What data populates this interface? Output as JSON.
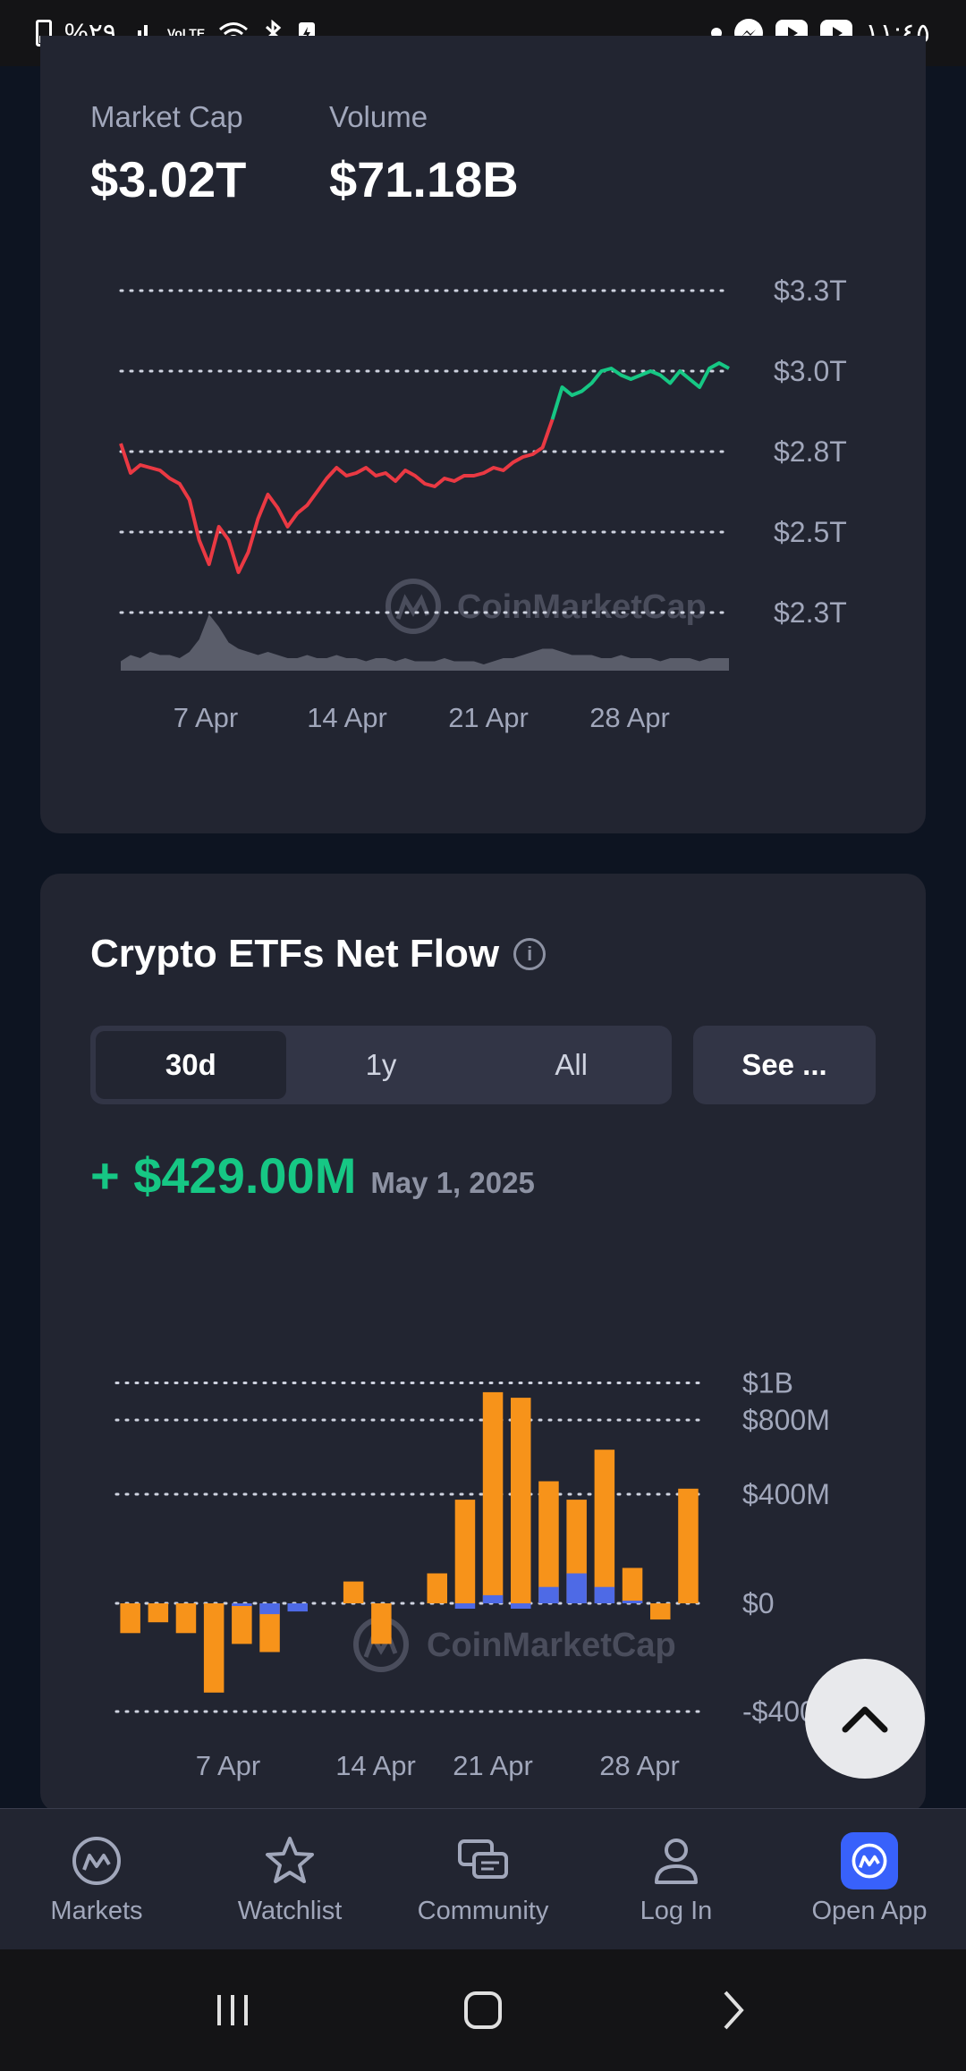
{
  "status_bar": {
    "battery_percent": "%٢٩",
    "network": "VoLTE",
    "time": "١١:٤٥"
  },
  "market": {
    "market_cap_label": "Market Cap",
    "market_cap_value": "$3.02T",
    "volume_label": "Volume",
    "volume_value": "$71.18B",
    "watermark": "CoinMarketCap"
  },
  "chart_data": [
    {
      "type": "line",
      "y_ticks": [
        "$3.3T",
        "$3.0T",
        "$2.8T",
        "$2.5T",
        "$2.3T"
      ],
      "x_ticks": [
        "7 Apr",
        "14 Apr",
        "21 Apr",
        "28 Apr"
      ],
      "ylim": [
        2.25,
        3.35
      ],
      "grid": true,
      "series": [
        {
          "values": [
            2.82,
            2.72,
            2.75,
            2.74,
            2.73,
            2.7,
            2.68,
            2.62,
            2.48,
            2.42,
            2.52,
            2.48,
            2.4,
            2.45,
            2.55,
            2.64,
            2.59,
            2.52,
            2.57,
            2.6,
            2.65,
            2.7,
            2.74,
            2.71,
            2.72,
            2.74,
            2.71,
            2.72,
            2.69,
            2.73,
            2.71,
            2.68,
            2.67,
            2.7,
            2.69,
            2.71,
            2.71,
            2.72,
            2.74,
            2.73,
            2.76,
            2.78,
            2.79,
            2.81,
            2.88,
            2.96,
            2.94,
            2.95,
            2.97,
            3.0,
            3.01,
            2.99,
            2.98,
            2.99,
            3.0,
            2.99,
            2.97,
            3.0,
            2.98,
            2.96,
            3.01,
            3.03,
            3.01
          ],
          "colors": {
            "down": "#ea3943",
            "up": "#16c784"
          }
        }
      ],
      "volume": [
        3,
        5,
        4,
        6,
        5,
        5,
        4,
        6,
        10,
        18,
        14,
        9,
        7,
        6,
        5,
        6,
        5,
        4,
        4,
        5,
        4,
        4,
        5,
        4,
        4,
        3,
        4,
        4,
        3,
        4,
        3,
        3,
        3,
        4,
        3,
        3,
        3,
        2,
        3,
        4,
        4,
        5,
        6,
        7,
        7,
        6,
        5,
        5,
        5,
        4,
        4,
        5,
        4,
        4,
        4,
        3,
        4,
        4,
        4,
        3,
        4,
        4,
        4
      ]
    },
    {
      "type": "bar",
      "y_ticks": [
        "$1B",
        "$800M",
        "$400M",
        "$0",
        "-$400M"
      ],
      "x_ticks": [
        "7 Apr",
        "14 Apr",
        "21 Apr",
        "28 Apr"
      ],
      "ylim": [
        -400,
        1000
      ],
      "grid": true,
      "series": [
        {
          "name": "BTC",
          "color": "#f7931a",
          "values": [
            -110,
            -70,
            -110,
            -330,
            -150,
            -180,
            -10,
            0,
            80,
            -150,
            0,
            110,
            380,
            950,
            920,
            470,
            380,
            640,
            130,
            -60,
            430
          ]
        },
        {
          "name": "ETH",
          "color": "#4e6ae6",
          "values": [
            0,
            0,
            0,
            0,
            -10,
            -40,
            -30,
            0,
            0,
            0,
            0,
            0,
            -20,
            30,
            -20,
            60,
            110,
            60,
            10,
            0,
            0
          ]
        }
      ]
    }
  ],
  "etf": {
    "title": "Crypto ETFs Net Flow",
    "tabs": [
      "30d",
      "1y",
      "All"
    ],
    "see_label": "See ...",
    "net_flow": "+ $429.00M",
    "date": "May 1, 2025",
    "watermark": "CoinMarketCap"
  },
  "nav": {
    "markets": "Markets",
    "watchlist": "Watchlist",
    "community": "Community",
    "login": "Log In",
    "open_app": "Open App"
  }
}
